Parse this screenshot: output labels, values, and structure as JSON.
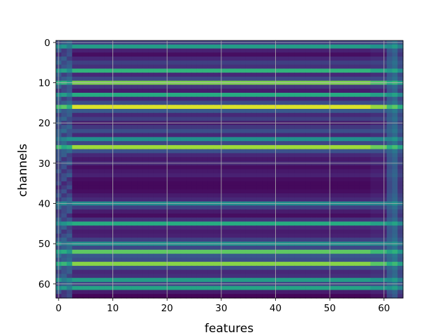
{
  "chart_data": {
    "type": "heatmap",
    "xlabel": "features",
    "ylabel": "channels",
    "x_ticks": [
      0,
      10,
      20,
      30,
      40,
      50,
      60
    ],
    "y_ticks": [
      0,
      10,
      20,
      30,
      40,
      50,
      60
    ],
    "xlim": [
      -0.5,
      63.5
    ],
    "ylim": [
      63.5,
      -0.5
    ],
    "n_rows": 64,
    "n_cols": 64,
    "colormap": "viridis",
    "grid": true,
    "grid_color": "#b0b0b0",
    "row_levels": [
      0.2,
      0.55,
      0.12,
      0.05,
      0.14,
      0.2,
      0.16,
      0.65,
      0.14,
      0.22,
      0.8,
      0.18,
      0.1,
      0.62,
      0.14,
      0.24,
      0.95,
      0.28,
      0.14,
      0.2,
      0.1,
      0.18,
      0.24,
      0.14,
      0.5,
      0.22,
      0.86,
      0.25,
      0.14,
      0.09,
      0.14,
      0.05,
      0.09,
      0.12,
      0.05,
      0.03,
      0.03,
      0.05,
      0.1,
      0.14,
      0.48,
      0.2,
      0.1,
      0.05,
      0.16,
      0.62,
      0.14,
      0.1,
      0.12,
      0.2,
      0.5,
      0.22,
      0.75,
      0.28,
      0.24,
      0.82,
      0.24,
      0.14,
      0.16,
      0.55,
      0.22,
      0.58,
      0.1,
      0.02
    ]
  }
}
